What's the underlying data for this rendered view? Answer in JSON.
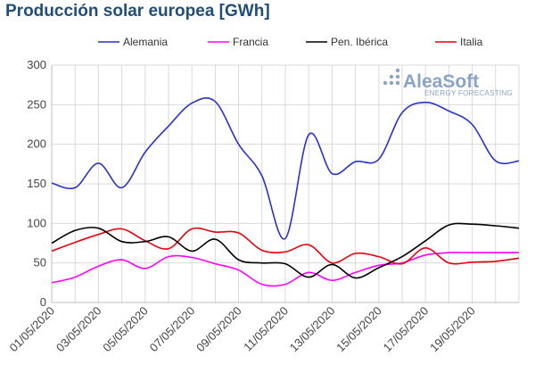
{
  "chart_data": {
    "type": "line",
    "title": "Producción solar europea [GWh]",
    "xlabel": "",
    "ylabel": "",
    "ylim": [
      0,
      300
    ],
    "yticks": [
      0,
      50,
      100,
      150,
      200,
      250,
      300
    ],
    "grid": true,
    "legend_position": "top",
    "x": [
      "01/05/2020",
      "02/05/2020",
      "03/05/2020",
      "04/05/2020",
      "05/05/2020",
      "06/05/2020",
      "07/05/2020",
      "08/05/2020",
      "09/05/2020",
      "10/05/2020",
      "11/05/2020",
      "12/05/2020",
      "13/05/2020",
      "14/05/2020",
      "15/05/2020",
      "16/05/2020",
      "17/05/2020",
      "18/05/2020",
      "19/05/2020",
      "20/05/2020",
      "21/05/2020"
    ],
    "xtick_labels": [
      "01/05/2020",
      "03/05/2020",
      "05/05/2020",
      "07/05/2020",
      "09/05/2020",
      "11/05/2020",
      "13/05/2020",
      "15/05/2020",
      "17/05/2020",
      "19/05/2020"
    ],
    "series": [
      {
        "name": "Alemania",
        "color": "#2633c6",
        "values": [
          151,
          145,
          176,
          145,
          190,
          223,
          252,
          254,
          200,
          160,
          81,
          212,
          163,
          178,
          181,
          240,
          253,
          242,
          225,
          179,
          179
        ]
      },
      {
        "name": "Francia",
        "color": "#ff00ff",
        "values": [
          25,
          32,
          46,
          54,
          43,
          58,
          57,
          49,
          41,
          23,
          23,
          38,
          28,
          38,
          47,
          50,
          60,
          63,
          63,
          63,
          63
        ]
      },
      {
        "name": "Pen. Ibérica",
        "color": "#000000",
        "values": [
          75,
          91,
          94,
          77,
          77,
          83,
          65,
          80,
          54,
          50,
          49,
          32,
          48,
          31,
          44,
          58,
          78,
          98,
          99,
          97,
          94
        ]
      },
      {
        "name": "Italia",
        "color": "#e8000b",
        "values": [
          65,
          76,
          86,
          93,
          78,
          68,
          93,
          89,
          88,
          66,
          64,
          73,
          50,
          62,
          58,
          49,
          69,
          50,
          51,
          52,
          56
        ]
      }
    ]
  },
  "logo": {
    "main": "AleaSoft",
    "sub": "ENERGY FORECASTING"
  }
}
